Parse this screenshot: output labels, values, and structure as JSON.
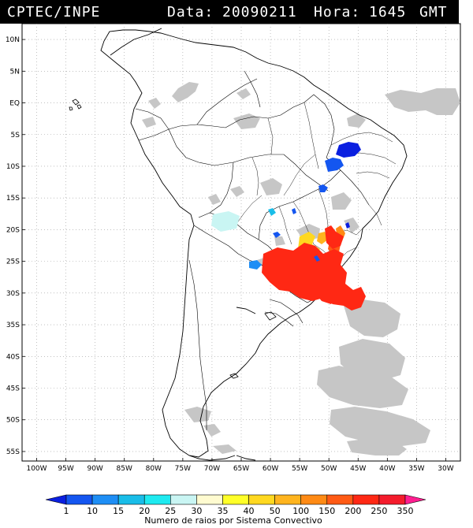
{
  "header": {
    "source": "CPTEC/INPE",
    "date_label": "Data:",
    "date_value": "20090211",
    "hour_label": "Hora:",
    "hour_value": "1645",
    "tz": "GMT"
  },
  "axes": {
    "lat_labels": [
      "10N",
      "5N",
      "EQ",
      "5S",
      "10S",
      "15S",
      "20S",
      "25S",
      "30S",
      "35S",
      "40S",
      "45S",
      "50S",
      "55S"
    ],
    "lon_labels": [
      "100W",
      "95W",
      "90W",
      "85W",
      "80W",
      "75W",
      "70W",
      "65W",
      "60W",
      "55W",
      "50W",
      "45W",
      "40W",
      "35W",
      "30W"
    ]
  },
  "colorbar": {
    "ticks": [
      "1",
      "10",
      "15",
      "20",
      "25",
      "30",
      "35",
      "40",
      "50",
      "100",
      "150",
      "200",
      "250",
      "350"
    ],
    "colors": [
      "#0a1fe0",
      "#1456f0",
      "#1e8ef5",
      "#19bde8",
      "#1eeaf0",
      "#c9f5f3",
      "#fffbd0",
      "#ffff28",
      "#ffd820",
      "#ffb41e",
      "#ff8a14",
      "#ff5a14",
      "#ff2814",
      "#f41c2c",
      "#ff1e90"
    ],
    "title": "Numero de raios por Sistema Convectivo"
  },
  "colors": {
    "cloud": "#c6c6c6",
    "coast": "#000000",
    "grid": "#9a9a9a"
  }
}
